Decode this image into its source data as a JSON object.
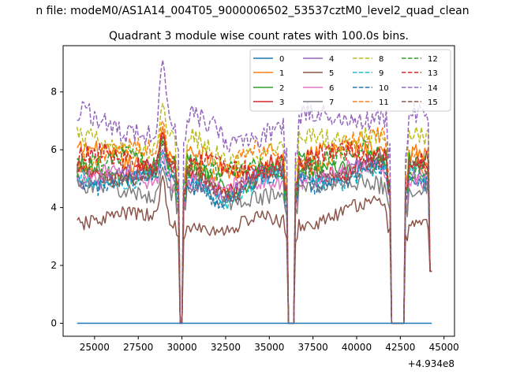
{
  "chart_data": {
    "type": "line",
    "suptitle": "n file: modeM0/AS1A14_004T05_9000006502_53537cztM0_level2_quad_clean",
    "title": "Quadrant 3 module wise count rates with 100.0s bins.",
    "xlabel": "",
    "ylabel": "",
    "x_offset_label": "+4.934e8",
    "xlim": [
      23200,
      45600
    ],
    "ylim": [
      -0.45,
      9.6
    ],
    "x_ticks": [
      25000,
      27500,
      30000,
      32500,
      35000,
      37500,
      40000,
      42500,
      45000
    ],
    "x_tick_labels": [
      "25000",
      "27500",
      "30000",
      "32500",
      "35000",
      "37500",
      "40000",
      "42500",
      "45000"
    ],
    "y_ticks": [
      0,
      2,
      4,
      6,
      8
    ],
    "y_tick_labels": [
      "0",
      "2",
      "4",
      "6",
      "8"
    ],
    "legend_position": "upper-right",
    "legend_columns": 4,
    "gaps": [
      [
        29900,
        30000
      ],
      [
        36100,
        36400
      ],
      [
        42000,
        42700
      ]
    ],
    "series": [
      {
        "name": "0",
        "color": "#1f77b4",
        "dash": "solid",
        "flat_zero": true
      },
      {
        "name": "1",
        "color": "#ff7f0e",
        "dash": "solid",
        "base": 5.7,
        "wave": [
          0.3,
          0.5
        ],
        "noise": 0.35,
        "peak": 6.8,
        "end": 1.8
      },
      {
        "name": "2",
        "color": "#2ca02c",
        "dash": "solid",
        "base": 5.3,
        "wave": [
          0.3,
          0.4
        ],
        "noise": 0.35,
        "peak": 6.3,
        "end": 1.8
      },
      {
        "name": "3",
        "color": "#d62728",
        "dash": "solid",
        "base": 5.3,
        "wave": [
          0.3,
          0.4
        ],
        "noise": 0.3,
        "peak": 6.6,
        "end": 1.8
      },
      {
        "name": "4",
        "color": "#9467bd",
        "dash": "solid",
        "base": 5.1,
        "wave": [
          0.2,
          0.3
        ],
        "noise": 0.3,
        "peak": 6.0,
        "end": 1.8
      },
      {
        "name": "5",
        "color": "#8c564b",
        "dash": "solid",
        "base": 3.6,
        "wave": [
          0.2,
          0.4
        ],
        "noise": 0.25,
        "peak": 5.1,
        "end": 1.8
      },
      {
        "name": "6",
        "color": "#e377c2",
        "dash": "solid",
        "base": 5.0,
        "wave": [
          0.2,
          0.4
        ],
        "noise": 0.3,
        "peak": 5.8,
        "end": 1.8
      },
      {
        "name": "7",
        "color": "#7f7f7f",
        "dash": "solid",
        "base": 4.6,
        "wave": [
          0.2,
          0.4
        ],
        "noise": 0.3,
        "peak": 5.4,
        "end": 1.8
      },
      {
        "name": "8",
        "color": "#bcbd22",
        "dash": "dashed",
        "base": 6.2,
        "wave": [
          0.3,
          0.6
        ],
        "noise": 0.35,
        "peak": 7.6,
        "end": 1.8
      },
      {
        "name": "9",
        "color": "#17becf",
        "dash": "dashed",
        "base": 5.0,
        "wave": [
          0.3,
          0.4
        ],
        "noise": 0.3,
        "peak": 5.9,
        "end": 1.8
      },
      {
        "name": "10",
        "color": "#1f77b4",
        "dash": "dashed",
        "base": 4.9,
        "wave": [
          0.2,
          0.4
        ],
        "noise": 0.3,
        "peak": 5.6,
        "end": 1.8
      },
      {
        "name": "11",
        "color": "#ff7f0e",
        "dash": "dashed",
        "base": 5.8,
        "wave": [
          0.3,
          0.5
        ],
        "noise": 0.35,
        "peak": 7.0,
        "end": 1.8
      },
      {
        "name": "12",
        "color": "#2ca02c",
        "dash": "dashed",
        "base": 5.5,
        "wave": [
          0.3,
          0.4
        ],
        "noise": 0.35,
        "peak": 6.4,
        "end": 1.8
      },
      {
        "name": "13",
        "color": "#d62728",
        "dash": "dashed",
        "base": 5.6,
        "wave": [
          0.3,
          0.4
        ],
        "noise": 0.35,
        "peak": 6.5,
        "end": 1.8
      },
      {
        "name": "14",
        "color": "#9467bd",
        "dash": "dashed",
        "base": 6.9,
        "wave": [
          0.4,
          0.6
        ],
        "noise": 0.4,
        "peak": 9.1,
        "end": 1.8
      },
      {
        "name": "15",
        "color": "#8c564b",
        "dash": "dashed",
        "base": 5.2,
        "wave": [
          0.3,
          0.4
        ],
        "noise": 0.3,
        "peak": 6.2,
        "end": 1.8
      }
    ],
    "x_range": [
      24000,
      44300
    ],
    "bin_seconds": 100
  }
}
